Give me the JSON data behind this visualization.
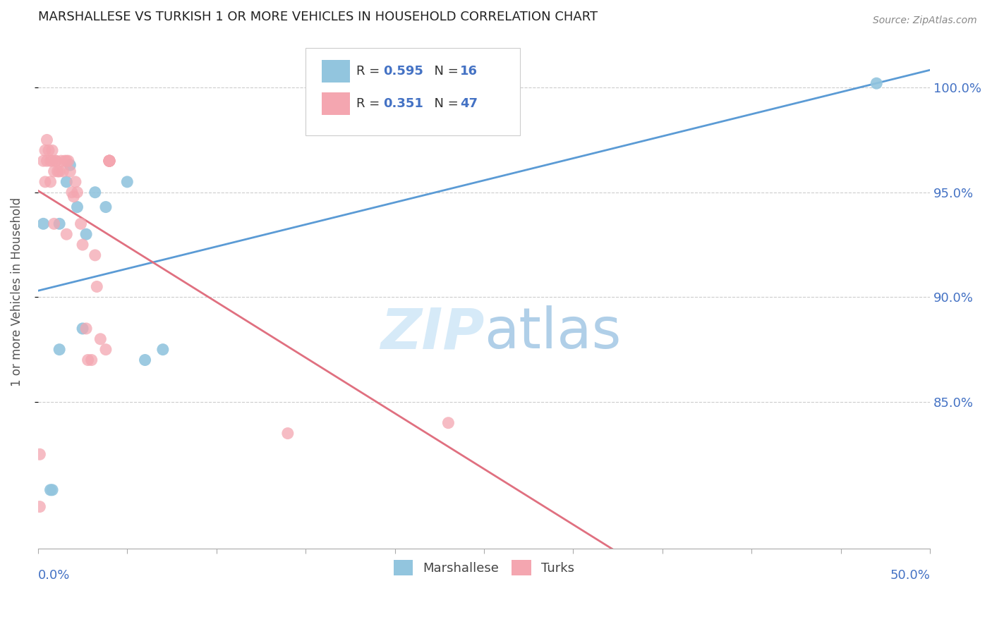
{
  "title": "MARSHALLESE VS TURKISH 1 OR MORE VEHICLES IN HOUSEHOLD CORRELATION CHART",
  "source": "Source: ZipAtlas.com",
  "ylabel": "1 or more Vehicles in Household",
  "ytick_values": [
    1.0,
    0.95,
    0.9,
    0.85
  ],
  "ytick_labels": [
    "100.0%",
    "95.0%",
    "90.0%",
    "85.0%"
  ],
  "xmin": 0.0,
  "xmax": 0.5,
  "ymin": 0.78,
  "ymax": 1.025,
  "blue_color": "#92c5de",
  "pink_color": "#f4a6b0",
  "blue_line_color": "#5b9bd5",
  "pink_line_color": "#e07080",
  "title_color": "#222222",
  "axis_label_color": "#4472c4",
  "watermark_color": "#d6eaf8",
  "background_color": "#ffffff",
  "grid_color": "#cccccc",
  "blue_R": "0.595",
  "blue_N": "16",
  "pink_R": "0.351",
  "pink_N": "47",
  "blue_dots_x": [
    0.003,
    0.007,
    0.008,
    0.012,
    0.012,
    0.016,
    0.018,
    0.022,
    0.025,
    0.027,
    0.032,
    0.038,
    0.05,
    0.06,
    0.07,
    0.47
  ],
  "blue_dots_y": [
    0.935,
    0.808,
    0.808,
    0.875,
    0.935,
    0.955,
    0.963,
    0.943,
    0.885,
    0.93,
    0.95,
    0.943,
    0.955,
    0.87,
    0.875,
    1.002
  ],
  "pink_dots_x": [
    0.001,
    0.001,
    0.003,
    0.004,
    0.004,
    0.005,
    0.005,
    0.006,
    0.007,
    0.007,
    0.008,
    0.008,
    0.009,
    0.009,
    0.01,
    0.01,
    0.011,
    0.012,
    0.013,
    0.014,
    0.015,
    0.016,
    0.016,
    0.017,
    0.018,
    0.019,
    0.02,
    0.021,
    0.022,
    0.024,
    0.025,
    0.027,
    0.028,
    0.03,
    0.032,
    0.033,
    0.035,
    0.038,
    0.04,
    0.04,
    0.04,
    0.04,
    0.04,
    0.04,
    0.04,
    0.14,
    0.23
  ],
  "pink_dots_y": [
    0.825,
    0.8,
    0.965,
    0.955,
    0.97,
    0.965,
    0.975,
    0.97,
    0.965,
    0.955,
    0.97,
    0.965,
    0.935,
    0.96,
    0.965,
    0.965,
    0.96,
    0.96,
    0.965,
    0.96,
    0.965,
    0.965,
    0.93,
    0.965,
    0.96,
    0.95,
    0.948,
    0.955,
    0.95,
    0.935,
    0.925,
    0.885,
    0.87,
    0.87,
    0.92,
    0.905,
    0.88,
    0.875,
    0.965,
    0.965,
    0.965,
    0.965,
    0.965,
    0.965,
    0.965,
    0.835,
    0.84
  ]
}
